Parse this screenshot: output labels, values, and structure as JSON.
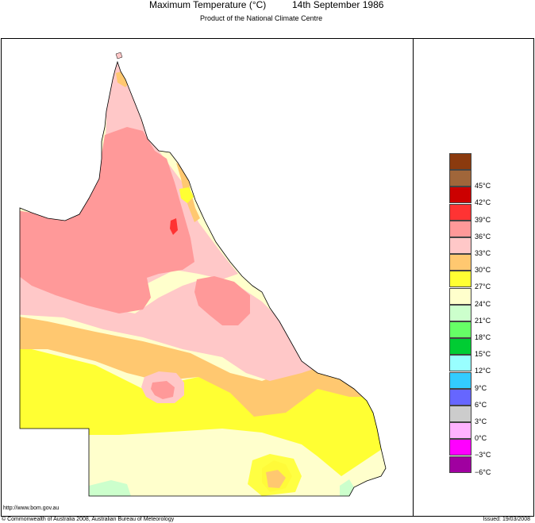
{
  "title": {
    "variable": "Maximum Temperature (°C)",
    "date": "14th September 1986"
  },
  "subtitle": "Product of the National Climate Centre",
  "legend": [
    {
      "label": "",
      "color": "#8b3a0e"
    },
    {
      "label": "45°C",
      "color": "#a0663a"
    },
    {
      "label": "42°C",
      "color": "#cc0000"
    },
    {
      "label": "39°C",
      "color": "#ff3333"
    },
    {
      "label": "36°C",
      "color": "#ff9999"
    },
    {
      "label": "33°C",
      "color": "#ffc8c8"
    },
    {
      "label": "30°C",
      "color": "#ffc870"
    },
    {
      "label": "27°C",
      "color": "#ffff33"
    },
    {
      "label": "24°C",
      "color": "#ffffcc"
    },
    {
      "label": "21°C",
      "color": "#ccffcc"
    },
    {
      "label": "18°C",
      "color": "#66ff66"
    },
    {
      "label": "15°C",
      "color": "#00cc33"
    },
    {
      "label": "12°C",
      "color": "#99ffff"
    },
    {
      "label": "9°C",
      "color": "#33ccff"
    },
    {
      "label": "6°C",
      "color": "#6666ff"
    },
    {
      "label": "3°C",
      "color": "#cccccc"
    },
    {
      "label": "0°C",
      "color": "#ffb3ff"
    },
    {
      "label": "−3°C",
      "color": "#ff00ff"
    },
    {
      "label": "−6°C",
      "color": "#a000a0"
    }
  ],
  "footer": {
    "url": "http://www.bom.gov.au",
    "copyright": "© Commonwealth of Australia 2008, Australian Bureau of Meteorology",
    "issued": "Issued: 19/03/2008"
  }
}
